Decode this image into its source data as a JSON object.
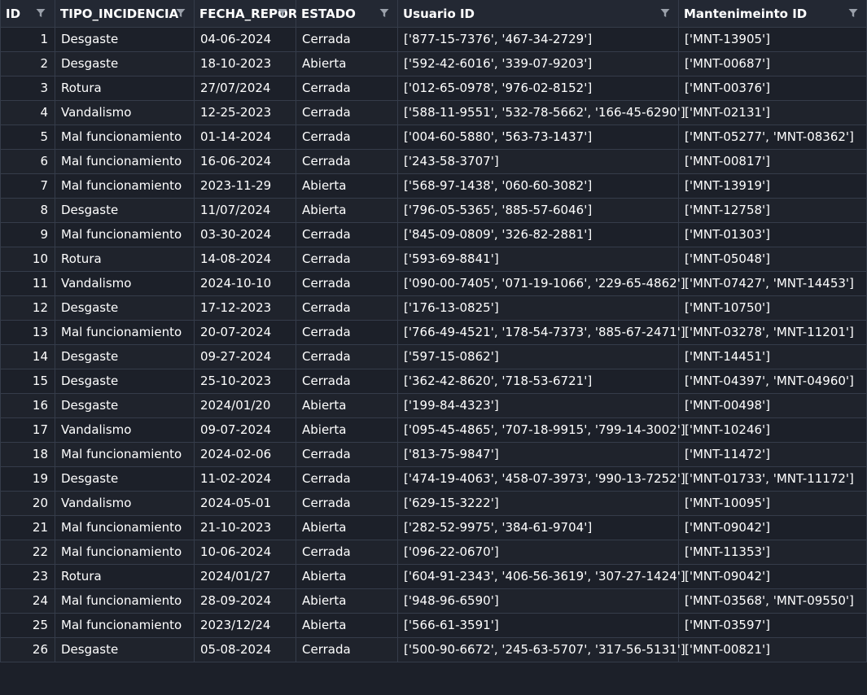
{
  "table": {
    "columns": [
      {
        "label": "ID",
        "filter_icon": "filter-icon"
      },
      {
        "label": "TIPO_INCIDENCIA",
        "filter_icon": "filter-icon"
      },
      {
        "label": "FECHA_REPORT",
        "filter_icon": "filter-icon"
      },
      {
        "label": "ESTADO",
        "filter_icon": "filter-icon"
      },
      {
        "label": "Usuario ID",
        "filter_icon": "filter-icon"
      },
      {
        "label": "Mantenimeinto ID",
        "filter_icon": "filter-icon"
      }
    ],
    "rows": [
      [
        "1",
        "Desgaste",
        "04-06-2024",
        "Cerrada",
        "['877-15-7376', '467-34-2729']",
        "['MNT-13905']"
      ],
      [
        "2",
        "Desgaste",
        "18-10-2023",
        "Abierta",
        "['592-42-6016', '339-07-9203']",
        "['MNT-00687']"
      ],
      [
        "3",
        "Rotura",
        "27/07/2024",
        "Cerrada",
        "['012-65-0978', '976-02-8152']",
        "['MNT-00376']"
      ],
      [
        "4",
        "Vandalismo",
        "12-25-2023",
        "Cerrada",
        "['588-11-9551', '532-78-5662', '166-45-6290']",
        "['MNT-02131']"
      ],
      [
        "5",
        "Mal funcionamiento",
        "01-14-2024",
        "Cerrada",
        "['004-60-5880', '563-73-1437']",
        "['MNT-05277', 'MNT-08362']"
      ],
      [
        "6",
        "Mal funcionamiento",
        "16-06-2024",
        "Cerrada",
        "['243-58-3707']",
        "['MNT-00817']"
      ],
      [
        "7",
        "Mal funcionamiento",
        "2023-11-29",
        "Abierta",
        "['568-97-1438', '060-60-3082']",
        "['MNT-13919']"
      ],
      [
        "8",
        "Desgaste",
        "11/07/2024",
        "Abierta",
        "['796-05-5365', '885-57-6046']",
        "['MNT-12758']"
      ],
      [
        "9",
        "Mal funcionamiento",
        "03-30-2024",
        "Cerrada",
        "['845-09-0809', '326-82-2881']",
        "['MNT-01303']"
      ],
      [
        "10",
        "Rotura",
        "14-08-2024",
        "Cerrada",
        "['593-69-8841']",
        "['MNT-05048']"
      ],
      [
        "11",
        "Vandalismo",
        "2024-10-10",
        "Cerrada",
        "['090-00-7405', '071-19-1066', '229-65-4862']",
        "['MNT-07427', 'MNT-14453']"
      ],
      [
        "12",
        "Desgaste",
        "17-12-2023",
        "Cerrada",
        "['176-13-0825']",
        "['MNT-10750']"
      ],
      [
        "13",
        "Mal funcionamiento",
        "20-07-2024",
        "Cerrada",
        "['766-49-4521', '178-54-7373', '885-67-2471']",
        "['MNT-03278', 'MNT-11201']"
      ],
      [
        "14",
        "Desgaste",
        "09-27-2024",
        "Cerrada",
        "['597-15-0862']",
        "['MNT-14451']"
      ],
      [
        "15",
        "Desgaste",
        "25-10-2023",
        "Cerrada",
        "['362-42-8620', '718-53-6721']",
        "['MNT-04397', 'MNT-04960']"
      ],
      [
        "16",
        "Desgaste",
        "2024/01/20",
        "Abierta",
        "['199-84-4323']",
        "['MNT-00498']"
      ],
      [
        "17",
        "Vandalismo",
        "09-07-2024",
        "Abierta",
        "['095-45-4865', '707-18-9915', '799-14-3002']",
        "['MNT-10246']"
      ],
      [
        "18",
        "Mal funcionamiento",
        "2024-02-06",
        "Cerrada",
        "['813-75-9847']",
        "['MNT-11472']"
      ],
      [
        "19",
        "Desgaste",
        "11-02-2024",
        "Cerrada",
        "['474-19-4063', '458-07-3973', '990-13-7252']",
        "['MNT-01733', 'MNT-11172']"
      ],
      [
        "20",
        "Vandalismo",
        "2024-05-01",
        "Cerrada",
        "['629-15-3222']",
        "['MNT-10095']"
      ],
      [
        "21",
        "Mal funcionamiento",
        "21-10-2023",
        "Abierta",
        "['282-52-9975', '384-61-9704']",
        "['MNT-09042']"
      ],
      [
        "22",
        "Mal funcionamiento",
        "10-06-2024",
        "Cerrada",
        "['096-22-0670']",
        "['MNT-11353']"
      ],
      [
        "23",
        "Rotura",
        "2024/01/27",
        "Abierta",
        "['604-91-2343', '406-56-3619', '307-27-1424']",
        "['MNT-09042']"
      ],
      [
        "24",
        "Mal funcionamiento",
        "28-09-2024",
        "Abierta",
        "['948-96-6590']",
        "['MNT-03568', 'MNT-09550']"
      ],
      [
        "25",
        "Mal funcionamiento",
        "2023/12/24",
        "Abierta",
        "['566-61-3591']",
        "['MNT-03597']"
      ],
      [
        "26",
        "Desgaste",
        "05-08-2024",
        "Cerrada",
        "['500-90-6672', '245-63-5707', '317-56-5131']",
        "['MNT-00821']"
      ]
    ]
  },
  "colors": {
    "background": "#1c2029",
    "header_background": "#232833",
    "grid_line": "#353c4a",
    "text": "#ffffff",
    "filter_icon": "#9aa0aa"
  }
}
